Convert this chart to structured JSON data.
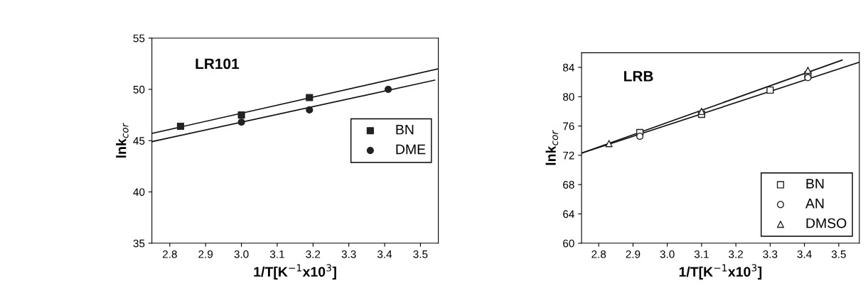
{
  "chart_data": [
    {
      "type": "scatter",
      "title": "LR101",
      "xlabel": "1/T[K$^{−1}$x10$^{3}$]",
      "ylabel": "lnk$_{cor}$",
      "xlim": [
        2.75,
        3.55
      ],
      "ylim": [
        35,
        55
      ],
      "xticks": [
        2.8,
        2.9,
        {
          "value": 3.0,
          "label": "3.0"
        },
        3.1,
        3.2,
        3.3,
        3.4,
        3.5
      ],
      "yticks": [
        35,
        40,
        45,
        50,
        55
      ],
      "legend": "right",
      "series": [
        {
          "name": "BN",
          "color": "#222222",
          "marker": "square",
          "x": [
            2.83,
            3.0,
            3.19
          ],
          "values": [
            46.4,
            47.5,
            49.2
          ]
        },
        {
          "name": "DME",
          "color": "#222222",
          "marker": "circle",
          "x": [
            3.0,
            3.19,
            3.41
          ],
          "values": [
            46.8,
            48.0,
            50.0
          ]
        },
        {
          "type": "line",
          "color": "#111111",
          "x": [
            2.75,
            3.55
          ],
          "values": [
            45.7,
            52.0
          ]
        },
        {
          "type": "line",
          "color": "#111111",
          "x": [
            2.75,
            3.54
          ],
          "values": [
            44.9,
            50.9
          ]
        }
      ]
    },
    {
      "type": "scatter",
      "title": "LRB",
      "xlabel": "1/T[K$^{−1}$x10$^{3}$]",
      "ylabel": "lnk$_{cor}$",
      "xlim": [
        2.75,
        3.56
      ],
      "ylim": [
        60,
        86
      ],
      "xticks": [
        2.8,
        2.9,
        {
          "value": 3.0,
          "label": "3.0"
        },
        3.1,
        3.2,
        3.3,
        3.4,
        3.5
      ],
      "yticks": [
        60,
        64,
        68,
        72,
        76,
        80,
        84
      ],
      "legend": "bottom right",
      "series": [
        {
          "name": "BN",
          "color": "#ffffff",
          "marker": "square",
          "x": [
            2.92,
            3.1,
            3.3,
            3.41
          ],
          "values": [
            75.1,
            77.6,
            80.9,
            83.0
          ]
        },
        {
          "name": "AN",
          "color": "#ffffff",
          "marker": "circle",
          "x": [
            2.92,
            3.41
          ],
          "values": [
            74.6,
            82.6
          ]
        },
        {
          "name": "DMSO",
          "color": "#ffffff",
          "marker": "triangle",
          "x": [
            2.83,
            3.1,
            3.41
          ],
          "values": [
            73.6,
            78.0,
            83.6
          ]
        },
        {
          "type": "line",
          "color": "#111111",
          "x": [
            2.75,
            3.51
          ],
          "values": [
            72.3,
            85.0
          ]
        },
        {
          "type": "line",
          "color": "#111111",
          "x": [
            2.75,
            3.56
          ],
          "values": [
            72.3,
            84.7
          ]
        }
      ]
    }
  ]
}
